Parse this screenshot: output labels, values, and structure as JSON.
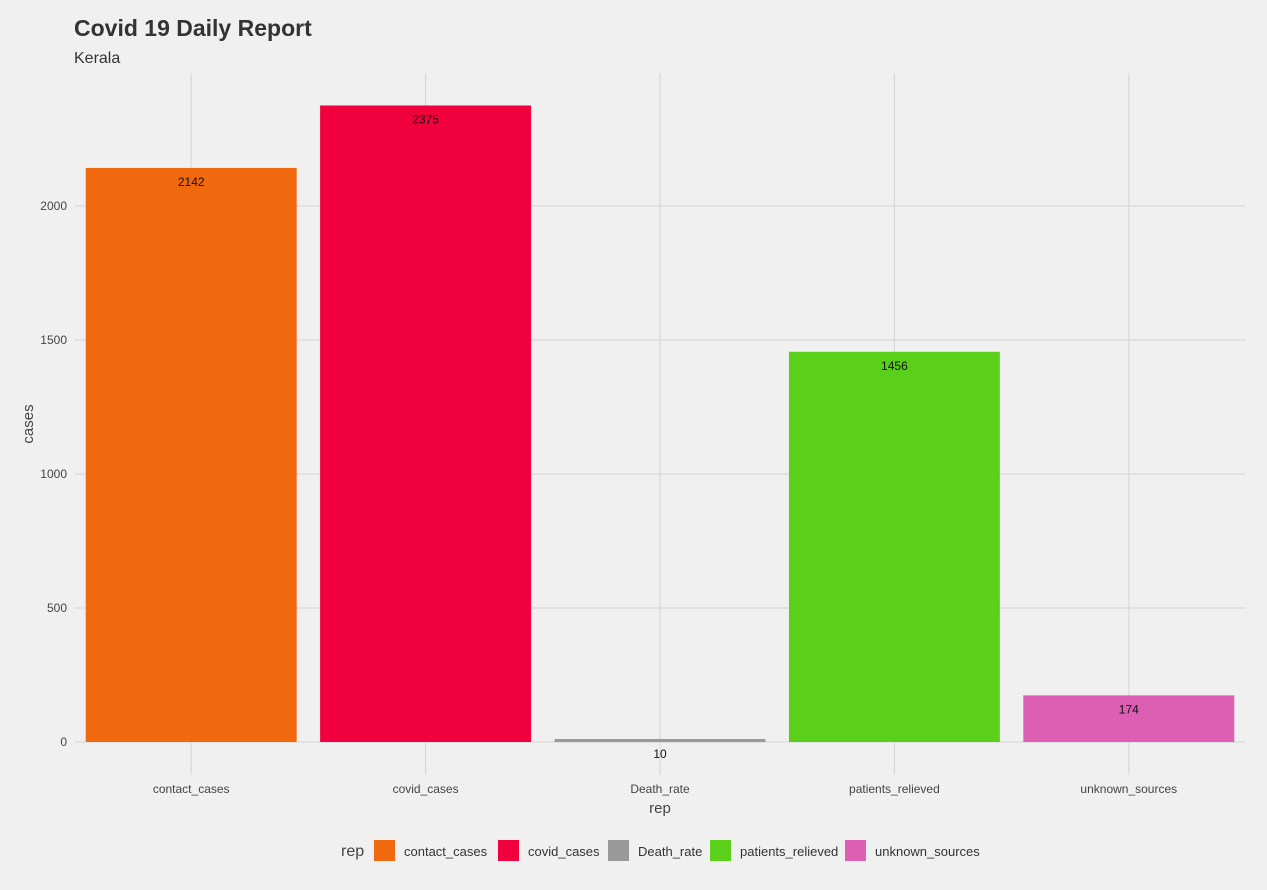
{
  "chart_data": {
    "type": "bar",
    "title": "Covid 19 Daily Report",
    "subtitle": "Kerala",
    "xlabel": "rep",
    "ylabel": "cases",
    "categories": [
      "contact_cases",
      "covid_cases",
      "Death_rate",
      "patients_relieved",
      "unknown_sources"
    ],
    "values": [
      2142,
      2375,
      10,
      1456,
      174
    ],
    "colors": [
      "#f0690f",
      "#f0003c",
      "#999999",
      "#5bd01a",
      "#dc5fb4"
    ],
    "yticks": [
      0,
      500,
      1000,
      1500,
      2000
    ],
    "ylim": [
      0,
      2500
    ],
    "grid": true,
    "legend": {
      "title": "rep",
      "position": "bottom",
      "entries": [
        "contact_cases",
        "covid_cases",
        "Death_rate",
        "patients_relieved",
        "unknown_sources"
      ]
    }
  }
}
